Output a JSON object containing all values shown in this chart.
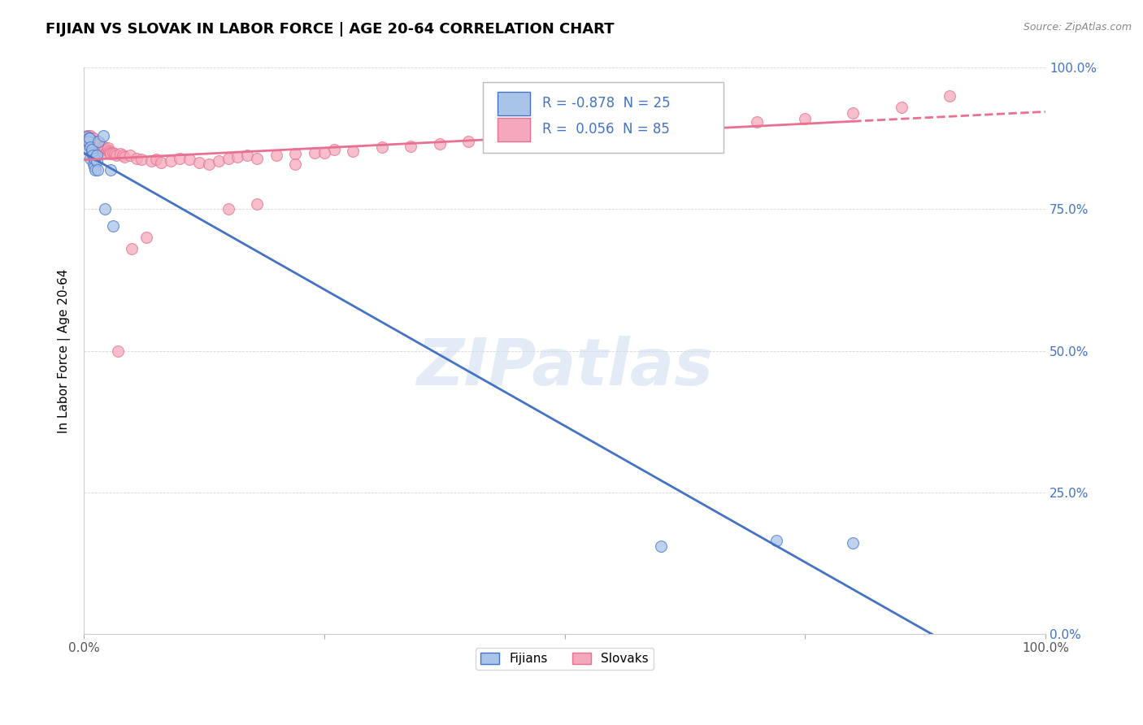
{
  "title": "FIJIAN VS SLOVAK IN LABOR FORCE | AGE 20-64 CORRELATION CHART",
  "source": "Source: ZipAtlas.com",
  "ylabel": "In Labor Force | Age 20-64",
  "legend_labels": [
    "Fijians",
    "Slovaks"
  ],
  "fijian_R": -0.878,
  "fijian_N": 25,
  "slovak_R": 0.056,
  "slovak_N": 85,
  "fijian_color": "#a8c4e8",
  "slovak_color": "#f5a8bc",
  "fijian_line_color": "#4472c4",
  "slovak_line_color": "#e87090",
  "background_color": "#ffffff",
  "watermark": "ZIPatlas",
  "fijian_x": [
    0.003,
    0.004,
    0.005,
    0.005,
    0.006,
    0.007,
    0.007,
    0.008,
    0.008,
    0.009,
    0.01,
    0.011,
    0.011,
    0.012,
    0.013,
    0.013,
    0.014,
    0.015,
    0.02,
    0.022,
    0.028,
    0.03,
    0.6,
    0.72,
    0.8
  ],
  "fijian_y": [
    0.878,
    0.855,
    0.875,
    0.87,
    0.875,
    0.86,
    0.84,
    0.85,
    0.855,
    0.845,
    0.83,
    0.825,
    0.84,
    0.82,
    0.835,
    0.845,
    0.82,
    0.87,
    0.88,
    0.75,
    0.82,
    0.72,
    0.155,
    0.165,
    0.16
  ],
  "slovak_x": [
    0.003,
    0.004,
    0.005,
    0.006,
    0.006,
    0.007,
    0.007,
    0.008,
    0.008,
    0.009,
    0.009,
    0.01,
    0.01,
    0.011,
    0.011,
    0.012,
    0.012,
    0.013,
    0.013,
    0.014,
    0.015,
    0.015,
    0.016,
    0.017,
    0.017,
    0.018,
    0.019,
    0.02,
    0.021,
    0.022,
    0.023,
    0.024,
    0.025,
    0.026,
    0.027,
    0.028,
    0.03,
    0.032,
    0.034,
    0.038,
    0.04,
    0.042,
    0.048,
    0.055,
    0.06,
    0.07,
    0.075,
    0.08,
    0.09,
    0.1,
    0.11,
    0.12,
    0.13,
    0.14,
    0.15,
    0.16,
    0.17,
    0.18,
    0.2,
    0.22,
    0.24,
    0.26,
    0.28,
    0.31,
    0.34,
    0.37,
    0.4,
    0.43,
    0.15,
    0.18,
    0.22,
    0.25,
    0.45,
    0.5,
    0.55,
    0.6,
    0.65,
    0.7,
    0.75,
    0.8,
    0.85,
    0.9,
    0.05,
    0.065,
    0.035
  ],
  "slovak_y": [
    0.88,
    0.865,
    0.88,
    0.875,
    0.87,
    0.875,
    0.88,
    0.87,
    0.865,
    0.86,
    0.875,
    0.865,
    0.875,
    0.865,
    0.87,
    0.86,
    0.87,
    0.865,
    0.86,
    0.87,
    0.86,
    0.865,
    0.86,
    0.86,
    0.865,
    0.858,
    0.86,
    0.855,
    0.86,
    0.855,
    0.85,
    0.855,
    0.858,
    0.852,
    0.85,
    0.848,
    0.85,
    0.848,
    0.845,
    0.848,
    0.845,
    0.842,
    0.845,
    0.84,
    0.838,
    0.835,
    0.838,
    0.832,
    0.835,
    0.84,
    0.838,
    0.832,
    0.83,
    0.835,
    0.84,
    0.842,
    0.845,
    0.84,
    0.845,
    0.848,
    0.85,
    0.855,
    0.852,
    0.86,
    0.862,
    0.865,
    0.87,
    0.875,
    0.75,
    0.76,
    0.83,
    0.85,
    0.88,
    0.88,
    0.89,
    0.895,
    0.9,
    0.905,
    0.91,
    0.92,
    0.93,
    0.95,
    0.68,
    0.7,
    0.5
  ],
  "xlim": [
    0.0,
    0.15
  ],
  "ylim": [
    0.0,
    1.0
  ],
  "yticks": [
    0.0,
    0.25,
    0.5,
    0.75,
    1.0
  ],
  "ytick_labels": [
    "0.0%",
    "25.0%",
    "50.0%",
    "75.0%",
    "100.0%"
  ],
  "xticks": [
    0.0,
    0.025,
    0.05,
    0.075,
    0.1,
    0.125,
    0.15
  ],
  "xtick_labels": [
    "0.0%",
    "",
    "",
    "",
    "",
    "",
    ""
  ],
  "title_fontsize": 13,
  "axis_label_fontsize": 11,
  "tick_fontsize": 11,
  "marker_size": 100
}
